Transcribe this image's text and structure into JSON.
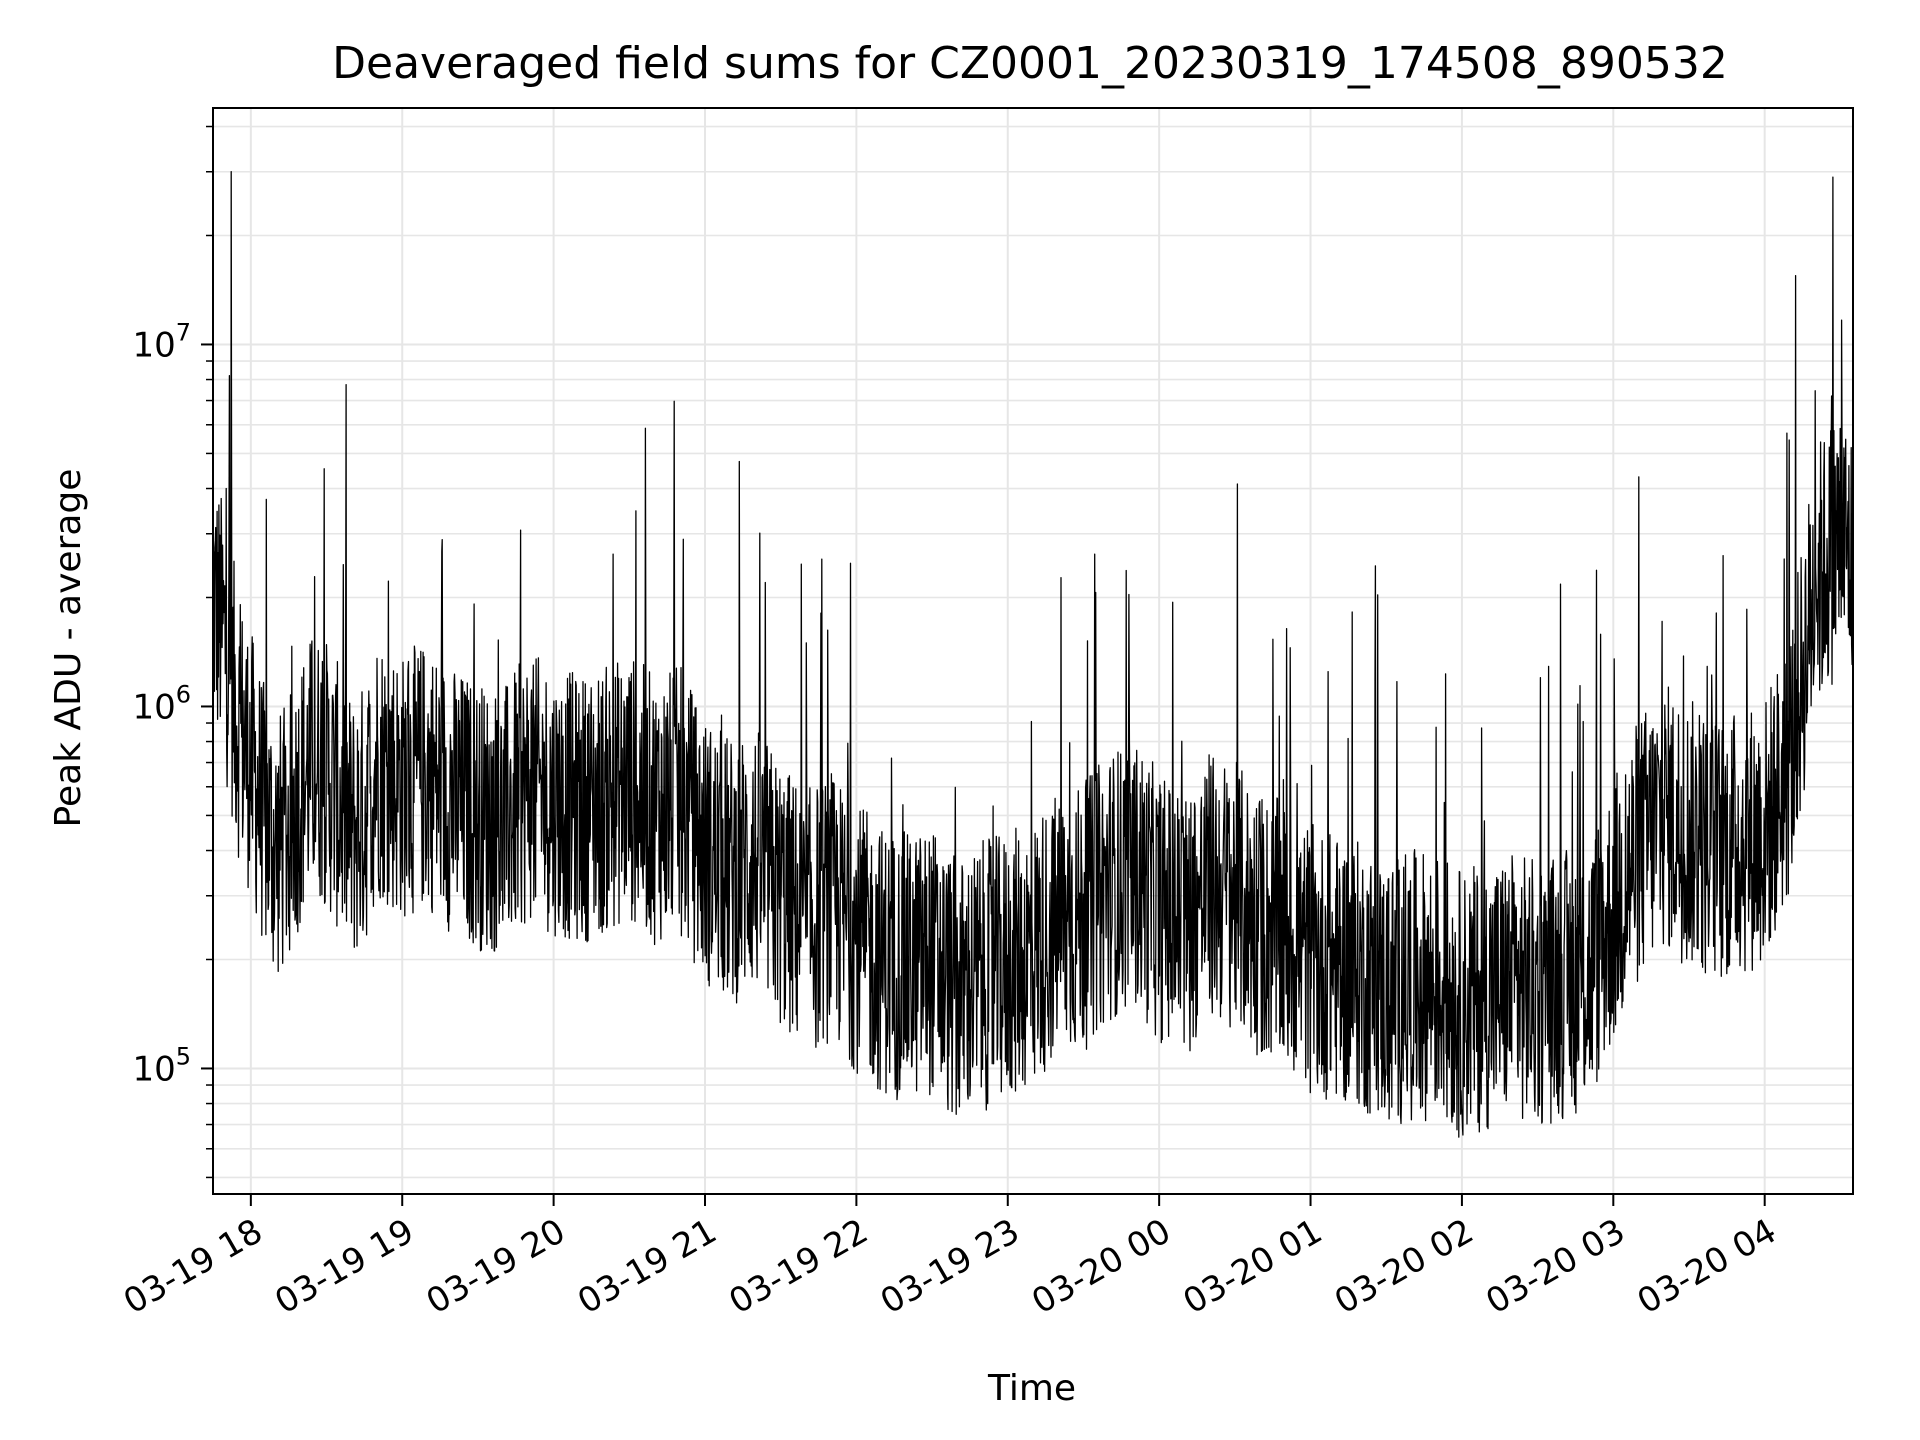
{
  "chart_data": {
    "type": "line",
    "title": "Deaveraged field sums for CZ0001_20230319_174508_890532",
    "xlabel": "Time",
    "ylabel": "Peak ADU - average",
    "yscale": "log",
    "ylim": [
      45000,
      45000000
    ],
    "xlim": [
      "2023-03-19 17:45",
      "2023-03-20 04:35"
    ],
    "grid": true,
    "line_color": "#000000",
    "grid_color": "#e6e6e6",
    "x_ticks": [
      {
        "t": "2023-03-19 18:00",
        "label": "03-19 18"
      },
      {
        "t": "2023-03-19 19:00",
        "label": "03-19 19"
      },
      {
        "t": "2023-03-19 20:00",
        "label": "03-19 20"
      },
      {
        "t": "2023-03-19 21:00",
        "label": "03-19 21"
      },
      {
        "t": "2023-03-19 22:00",
        "label": "03-19 22"
      },
      {
        "t": "2023-03-19 23:00",
        "label": "03-19 23"
      },
      {
        "t": "2023-03-20 00:00",
        "label": "03-20 00"
      },
      {
        "t": "2023-03-20 01:00",
        "label": "03-20 01"
      },
      {
        "t": "2023-03-20 02:00",
        "label": "03-20 02"
      },
      {
        "t": "2023-03-20 03:00",
        "label": "03-20 03"
      },
      {
        "t": "2023-03-20 04:00",
        "label": "03-20 04"
      }
    ],
    "y_ticks": [
      {
        "value": 100000,
        "base": "10",
        "exp": "5"
      },
      {
        "value": 1000000,
        "base": "10",
        "exp": "6"
      },
      {
        "value": 10000000,
        "base": "10",
        "exp": "7"
      }
    ],
    "series": [
      {
        "x": [
          "2023-03-19 17:45",
          "2023-03-19 17:50",
          "2023-03-19 17:55",
          "2023-03-19 18:00",
          "2023-03-19 18:05",
          "2023-03-19 18:10",
          "2023-03-19 18:15",
          "2023-03-19 18:20",
          "2023-03-19 18:25",
          "2023-03-19 18:30",
          "2023-03-19 18:35",
          "2023-03-19 18:40",
          "2023-03-19 18:45",
          "2023-03-19 18:50",
          "2023-03-19 18:55",
          "2023-03-19 19:00",
          "2023-03-19 19:10",
          "2023-03-19 19:20",
          "2023-03-19 19:30",
          "2023-03-19 19:40",
          "2023-03-19 19:50",
          "2023-03-19 20:00",
          "2023-03-19 20:10",
          "2023-03-19 20:20",
          "2023-03-19 20:30",
          "2023-03-19 20:40",
          "2023-03-19 20:50",
          "2023-03-19 21:00",
          "2023-03-19 21:10",
          "2023-03-19 21:20",
          "2023-03-19 21:30",
          "2023-03-19 21:40",
          "2023-03-19 21:50",
          "2023-03-19 22:00",
          "2023-03-19 22:10",
          "2023-03-19 22:20",
          "2023-03-19 22:30",
          "2023-03-19 22:40",
          "2023-03-19 22:50",
          "2023-03-19 23:00",
          "2023-03-19 23:10",
          "2023-03-19 23:20",
          "2023-03-19 23:30",
          "2023-03-19 23:40",
          "2023-03-19 23:50",
          "2023-03-20 00:00",
          "2023-03-20 00:10",
          "2023-03-20 00:20",
          "2023-03-20 00:30",
          "2023-03-20 00:40",
          "2023-03-20 00:50",
          "2023-03-20 01:00",
          "2023-03-20 01:10",
          "2023-03-20 01:20",
          "2023-03-20 01:30",
          "2023-03-20 01:40",
          "2023-03-20 01:50",
          "2023-03-20 02:00",
          "2023-03-20 02:10",
          "2023-03-20 02:20",
          "2023-03-20 02:30",
          "2023-03-20 02:40",
          "2023-03-20 02:50",
          "2023-03-20 03:00",
          "2023-03-20 03:10",
          "2023-03-20 03:20",
          "2023-03-20 03:30",
          "2023-03-20 03:40",
          "2023-03-20 03:50",
          "2023-03-20 04:00",
          "2023-03-20 04:10",
          "2023-03-20 04:20",
          "2023-03-20 04:30",
          "2023-03-20 04:35"
        ],
        "y": [
          2000000,
          1500000,
          900000,
          700000,
          500000,
          400000,
          450000,
          600000,
          700000,
          650000,
          550000,
          450000,
          500000,
          700000,
          650000,
          600000,
          650000,
          550000,
          500000,
          480000,
          600000,
          550000,
          520000,
          550000,
          600000,
          520000,
          550000,
          400000,
          350000,
          380000,
          300000,
          250000,
          280000,
          230000,
          200000,
          190000,
          200000,
          160000,
          180000,
          190000,
          210000,
          250000,
          260000,
          320000,
          350000,
          280000,
          250000,
          320000,
          300000,
          250000,
          230000,
          200000,
          190000,
          180000,
          160000,
          170000,
          170000,
          150000,
          160000,
          170000,
          160000,
          170000,
          180000,
          270000,
          400000,
          500000,
          450000,
          400000,
          420000,
          450000,
          700000,
          2200000,
          3000000,
          2500000
        ]
      }
    ]
  }
}
